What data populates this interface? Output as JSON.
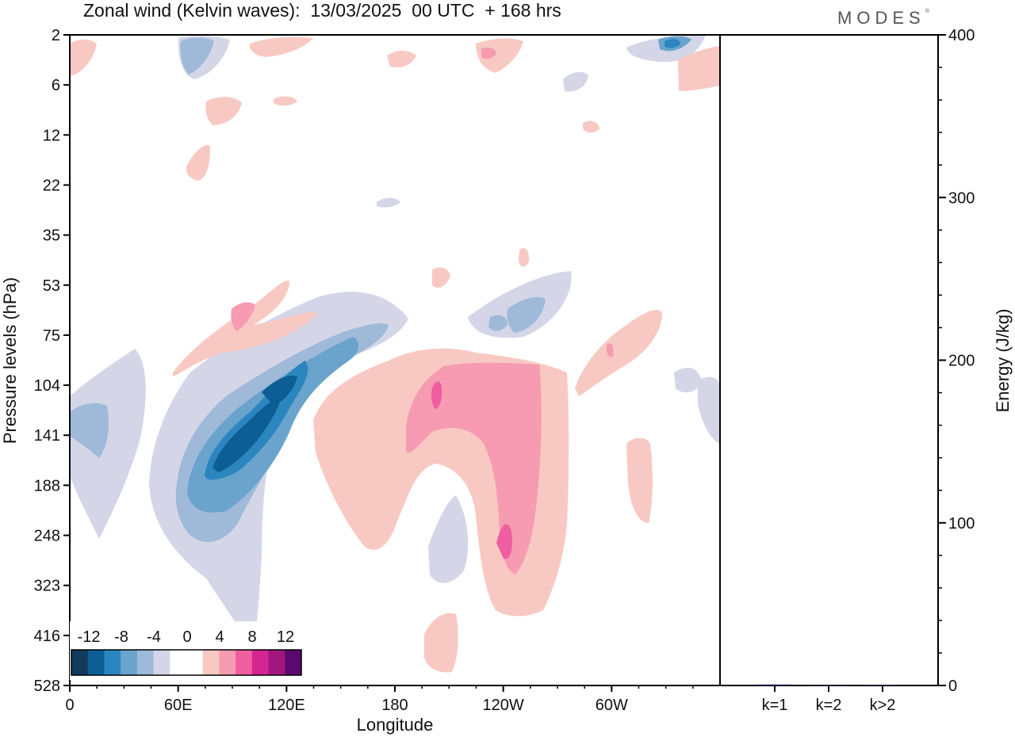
{
  "title": "Zonal wind (Kelvin waves):  13/03/2025  00 UTC  + 168 hrs",
  "logo": "MODES",
  "logo_mark": "®",
  "colors": {
    "neg": [
      "#113a5c",
      "#0d5e95",
      "#2b86bf",
      "#6aa3cc",
      "#9fb9d9",
      "#d4d6e8"
    ],
    "zero": "#ffffff",
    "pos": [
      "#f8c9c3",
      "#f69bb1",
      "#ee5ea0",
      "#d42590",
      "#a2177f",
      "#5a0a6e"
    ]
  },
  "chart_data": [
    {
      "type": "heatmap",
      "title": "Zonal wind (Kelvin waves):  13/03/2025  00 UTC  + 168 hrs",
      "xlabel": "Longitude",
      "ylabel": "Pressure levels (hPa)",
      "x_ticks": [
        "0",
        "60E",
        "120E",
        "180",
        "120W",
        "60W"
      ],
      "x_tick_values": [
        0,
        60,
        120,
        180,
        240,
        300
      ],
      "xlim": [
        0,
        360
      ],
      "y_ticks": [
        "2",
        "6",
        "12",
        "22",
        "35",
        "53",
        "75",
        "104",
        "141",
        "188",
        "248",
        "323",
        "416",
        "528"
      ],
      "y_scale": "pressure levels (log-like)",
      "colorbar_labels": [
        "-12",
        "-8",
        "-4",
        "0",
        "4",
        "8",
        "12"
      ],
      "colorbar_levels": [
        -14,
        -12,
        -10,
        -8,
        -6,
        -4,
        -2,
        2,
        4,
        6,
        8,
        10,
        12,
        14
      ],
      "features": [
        {
          "sign": "negative",
          "lon": 100,
          "level_hpa": 141,
          "peak": -12
        },
        {
          "sign": "positive",
          "lon": 200,
          "level_hpa": 104,
          "peak": 8
        },
        {
          "sign": "positive",
          "lon": 240,
          "level_hpa": 248,
          "peak": 6
        },
        {
          "sign": "positive",
          "lon": 90,
          "level_hpa": 70,
          "peak": 6
        },
        {
          "sign": "negative",
          "lon": 250,
          "level_hpa": 70,
          "peak": -6
        },
        {
          "sign": "negative",
          "lon": 15,
          "level_hpa": 141,
          "peak": -4
        }
      ]
    },
    {
      "type": "bar",
      "categories": [
        "k=1",
        "k=2",
        "k>2"
      ],
      "values": [
        0.6,
        0.1,
        0.5
      ],
      "ylabel": "Energy (J/kg)",
      "ylim": [
        0,
        400
      ],
      "y_ticks": [
        "0",
        "100",
        "200",
        "300",
        "400"
      ],
      "y_tick_values": [
        0,
        100,
        200,
        300,
        400
      ],
      "bar_color": "#1a1f5a"
    }
  ]
}
